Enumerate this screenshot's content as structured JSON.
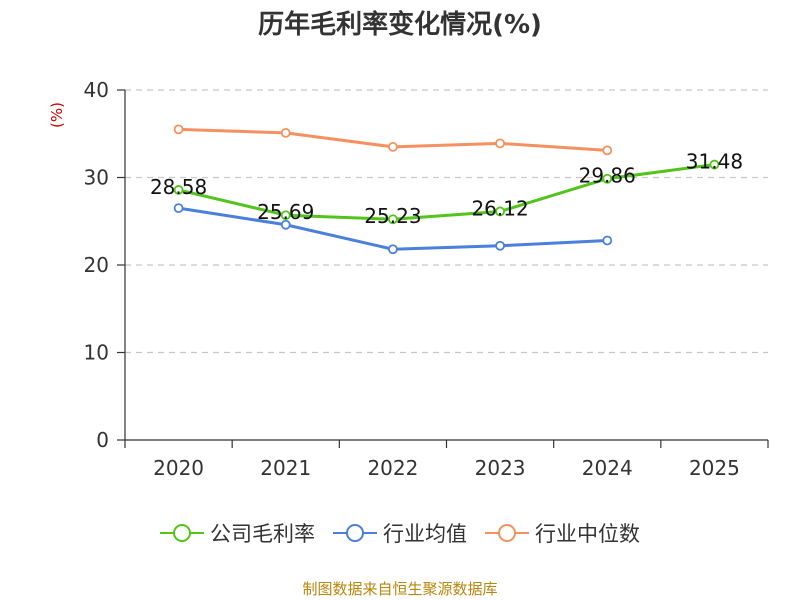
{
  "title": "历年毛利率变化情况(%)",
  "footer": "制图数据来自恒生聚源数据库",
  "chart_data": {
    "type": "line",
    "title": "历年毛利率变化情况(%)",
    "ylabel": "(%)",
    "xlabel": "",
    "categories": [
      "2020",
      "2021",
      "2022",
      "2023",
      "2024",
      "2025"
    ],
    "ylim": [
      0,
      40
    ],
    "yticks": [
      0,
      10,
      20,
      30,
      40
    ],
    "grid": true,
    "legend_position": "bottom",
    "series": [
      {
        "name": "公司毛利率",
        "color": "#52c41a",
        "values": [
          28.58,
          25.69,
          25.23,
          26.12,
          29.86,
          31.48
        ],
        "labels": [
          "28.58",
          "25.69",
          "25.23",
          "26.12",
          "29.86",
          "31.48"
        ]
      },
      {
        "name": "行业均值",
        "color": "#4a7fdc",
        "values": [
          26.5,
          24.6,
          21.8,
          22.2,
          22.8,
          null
        ]
      },
      {
        "name": "行业中位数",
        "color": "#f59160",
        "values": [
          35.5,
          35.1,
          33.5,
          33.9,
          33.1,
          null
        ]
      }
    ]
  }
}
